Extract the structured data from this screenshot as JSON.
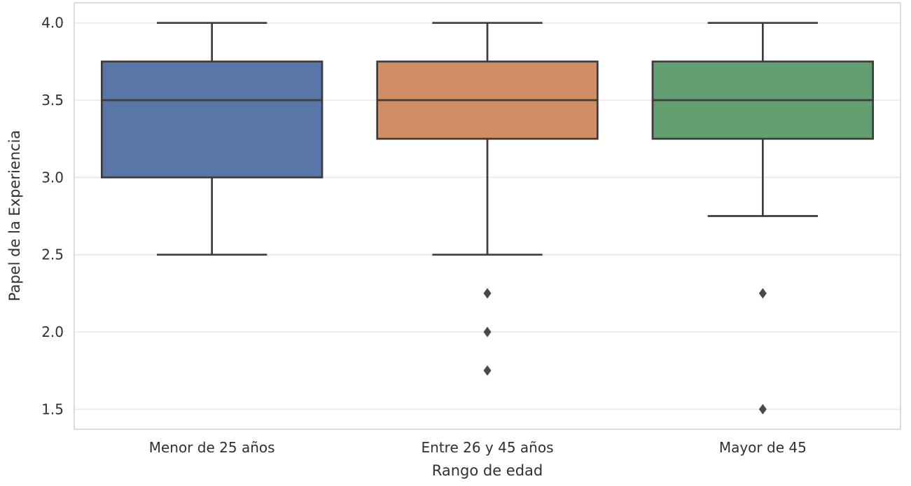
{
  "figure": {
    "background": "#ffffff"
  },
  "style": {
    "edge_color": "#3c3c3c",
    "outlier_color": "#4a4a4a",
    "grid_color": "#e8e8e8",
    "spine_color": "#d4d4d4",
    "text_color": "#303030",
    "box_palette": [
      "#5877a8",
      "#d08c62",
      "#62a071"
    ]
  },
  "chart_data": {
    "type": "boxplot",
    "title": "",
    "xlabel": "Rango de edad",
    "ylabel": "Papel de la Experiencia",
    "categories": [
      "Menor de 25 años",
      "Entre 26 y 45 años",
      "Mayor de 45"
    ],
    "ylim": [
      1.37,
      4.13
    ],
    "ytick_values": [
      1.5,
      2.0,
      2.5,
      3.0,
      3.5,
      4.0
    ],
    "ytick_labels": [
      "1.5",
      "2.0",
      "2.5",
      "3.0",
      "3.5",
      "4.0"
    ],
    "grid": "horizontal-only",
    "legend": "none",
    "boxes": [
      {
        "category": "Menor de 25 años",
        "whisker_low": 2.5,
        "q1": 3.0,
        "median": 3.5,
        "q3": 3.75,
        "whisker_high": 4.0,
        "outliers": [],
        "fill_color": "#5877a8"
      },
      {
        "category": "Entre 26 y 45 años",
        "whisker_low": 2.5,
        "q1": 3.25,
        "median": 3.5,
        "q3": 3.75,
        "whisker_high": 4.0,
        "outliers": [
          2.25,
          2.0,
          1.75
        ],
        "fill_color": "#d08c62"
      },
      {
        "category": "Mayor de 45",
        "whisker_low": 2.75,
        "q1": 3.25,
        "median": 3.5,
        "q3": 3.75,
        "whisker_high": 4.0,
        "outliers": [
          2.25,
          1.5
        ],
        "fill_color": "#62a071"
      }
    ]
  }
}
